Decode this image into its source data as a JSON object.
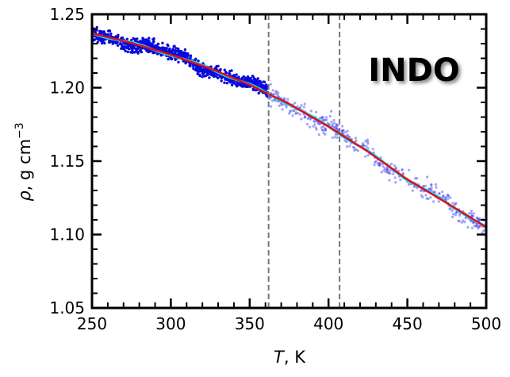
{
  "chart_data": {
    "type": "scatter",
    "xlabel_italic": "T",
    "xlabel_rest": ", K",
    "ylabel_italic": "ρ",
    "ylabel_rest": ", g cm",
    "ylabel_sup": "−3",
    "annotation": "INDO",
    "xlim": [
      250,
      500
    ],
    "ylim": [
      1.05,
      1.25
    ],
    "x_ticks": [
      250,
      300,
      350,
      400,
      450,
      500
    ],
    "x_tick_labels": [
      "250",
      "300",
      "350",
      "400",
      "450",
      "500"
    ],
    "y_ticks": [
      1.05,
      1.1,
      1.15,
      1.2,
      1.25
    ],
    "y_tick_labels": [
      "1.05",
      "1.10",
      "1.15",
      "1.20",
      "1.25"
    ],
    "vertical_lines": [
      362,
      407
    ],
    "scatter_regions": [
      {
        "x_range": [
          250,
          362
        ],
        "color": "#0a0adc",
        "opacity": 1.0
      },
      {
        "x_range": [
          362,
          500
        ],
        "color": "#4a4af0",
        "opacity": 0.5
      }
    ],
    "trend_points": [
      {
        "x": 250,
        "y": 1.237
      },
      {
        "x": 275,
        "y": 1.2305
      },
      {
        "x": 300,
        "y": 1.2225
      },
      {
        "x": 325,
        "y": 1.213
      },
      {
        "x": 350,
        "y": 1.202
      },
      {
        "x": 375,
        "y": 1.189
      },
      {
        "x": 400,
        "y": 1.1735
      },
      {
        "x": 425,
        "y": 1.1565
      },
      {
        "x": 450,
        "y": 1.1375
      },
      {
        "x": 475,
        "y": 1.1215
      },
      {
        "x": 500,
        "y": 1.105
      }
    ],
    "series": [
      {
        "color": "#00e0ff"
      },
      {
        "color": "#e01010"
      }
    ],
    "grid": false
  }
}
